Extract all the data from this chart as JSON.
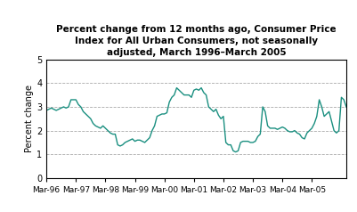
{
  "title": "Percent change from 12 months ago, Consumer Price\nIndex for All Urban Consumers, not seasonally\nadjusted, March 1996–March 2005",
  "ylabel": "Percent change",
  "line_color": "#1a8f80",
  "background_color": "#ffffff",
  "ylim": [
    0,
    5
  ],
  "yticks": [
    0,
    1,
    2,
    3,
    4,
    5
  ],
  "grid_color": "#aaaaaa",
  "xtick_labels": [
    "Mar-96",
    "Mar-97",
    "Mar-98",
    "Mar-99",
    "Mar-00",
    "Mar-01",
    "Mar-02",
    "Mar-03",
    "Mar-04",
    "Mar-05"
  ],
  "values": [
    2.85,
    2.9,
    2.95,
    2.9,
    2.85,
    2.9,
    2.95,
    3.0,
    2.95,
    3.0,
    3.3,
    3.3,
    3.3,
    3.1,
    3.0,
    2.8,
    2.7,
    2.6,
    2.5,
    2.3,
    2.2,
    2.15,
    2.1,
    2.2,
    2.1,
    2.0,
    1.9,
    1.85,
    1.85,
    1.4,
    1.35,
    1.4,
    1.5,
    1.55,
    1.6,
    1.65,
    1.55,
    1.6,
    1.6,
    1.55,
    1.5,
    1.6,
    1.7,
    2.0,
    2.2,
    2.6,
    2.65,
    2.7,
    2.7,
    2.75,
    3.2,
    3.4,
    3.5,
    3.8,
    3.7,
    3.6,
    3.5,
    3.5,
    3.5,
    3.4,
    3.7,
    3.75,
    3.7,
    3.8,
    3.6,
    3.5,
    3.0,
    2.9,
    2.8,
    2.9,
    2.65,
    2.5,
    2.6,
    1.5,
    1.4,
    1.4,
    1.15,
    1.1,
    1.15,
    1.5,
    1.55,
    1.55,
    1.55,
    1.5,
    1.5,
    1.55,
    1.75,
    1.85,
    3.0,
    2.8,
    2.2,
    2.1,
    2.1,
    2.1,
    2.05,
    2.1,
    2.15,
    2.1,
    2.0,
    1.95,
    1.95,
    2.0,
    1.9,
    1.85,
    1.7,
    1.65,
    1.9,
    2.0,
    2.1,
    2.3,
    2.6,
    3.3,
    3.0,
    2.6,
    2.7,
    2.8,
    2.4,
    2.0,
    1.9,
    2.0,
    3.4,
    3.3,
    3.0
  ]
}
